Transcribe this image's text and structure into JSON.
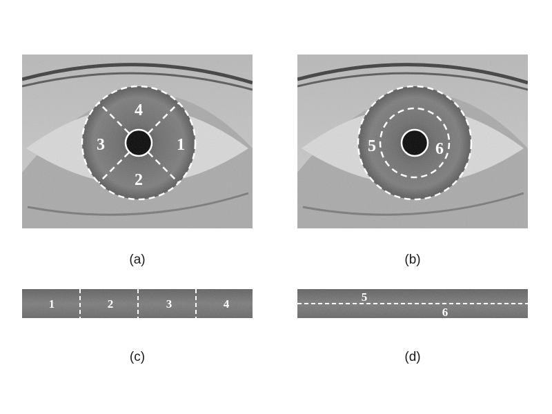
{
  "panels": {
    "a": {
      "caption": "(a)",
      "sector_labels": [
        "1",
        "2",
        "3",
        "4"
      ]
    },
    "b": {
      "caption": "(b)",
      "ring_labels": [
        "5",
        "6"
      ]
    },
    "c": {
      "caption": "(c)",
      "strip_labels": [
        "1",
        "2",
        "3",
        "4"
      ]
    },
    "d": {
      "caption": "(d)",
      "strip_labels": [
        "5",
        "6"
      ]
    }
  },
  "colors": {
    "background": "#ffffff",
    "annotation": "#ffffff",
    "pupil": "#000000",
    "iris": "#6e6e6e",
    "sclera": "#dcdcdc",
    "normalized_strip": "#6f6f6f",
    "caption_text": "#1a1a1a"
  }
}
